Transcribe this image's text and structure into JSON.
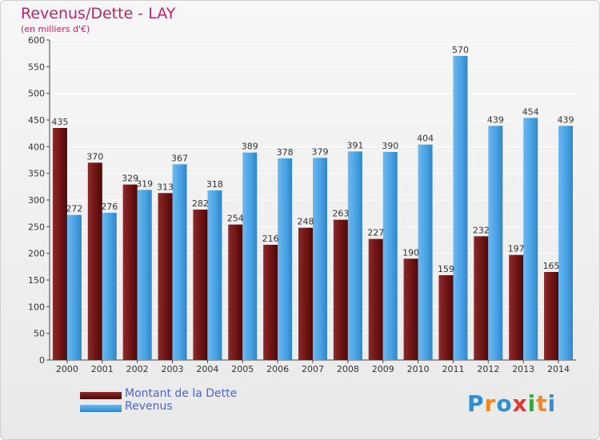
{
  "title": "Revenus/Dette - LAY",
  "subtitle": "(en milliers d'€)",
  "logo": {
    "letters": [
      "P",
      "r",
      "o",
      "x",
      "i",
      "t",
      "i"
    ],
    "colors": [
      "#2e8fd8",
      "#f08a1c",
      "#2e8fd8",
      "#e03a2f",
      "#3aa640",
      "#f08a1c",
      "#2e8fd8"
    ]
  },
  "chart_data": {
    "type": "bar",
    "categories": [
      "2000",
      "2001",
      "2002",
      "2003",
      "2004",
      "2005",
      "2006",
      "2007",
      "2008",
      "2009",
      "2010",
      "2011",
      "2012",
      "2013",
      "2014"
    ],
    "ylim": [
      0,
      600
    ],
    "yticks": [
      "0",
      "50",
      "100",
      "150",
      "200",
      "250",
      "300",
      "350",
      "400",
      "450",
      "500",
      "550",
      "600"
    ],
    "series": [
      {
        "name": "Montant de la Dette",
        "color": "#7a1c1c",
        "values": [
          435,
          370,
          329,
          313,
          282,
          254,
          216,
          248,
          263,
          227,
          190,
          159,
          232,
          197,
          165
        ]
      },
      {
        "name": "Revenus",
        "color": "#4aa3e6",
        "values": [
          272,
          276,
          319,
          367,
          318,
          389,
          378,
          379,
          391,
          390,
          404,
          570,
          439,
          454,
          439
        ]
      }
    ]
  }
}
